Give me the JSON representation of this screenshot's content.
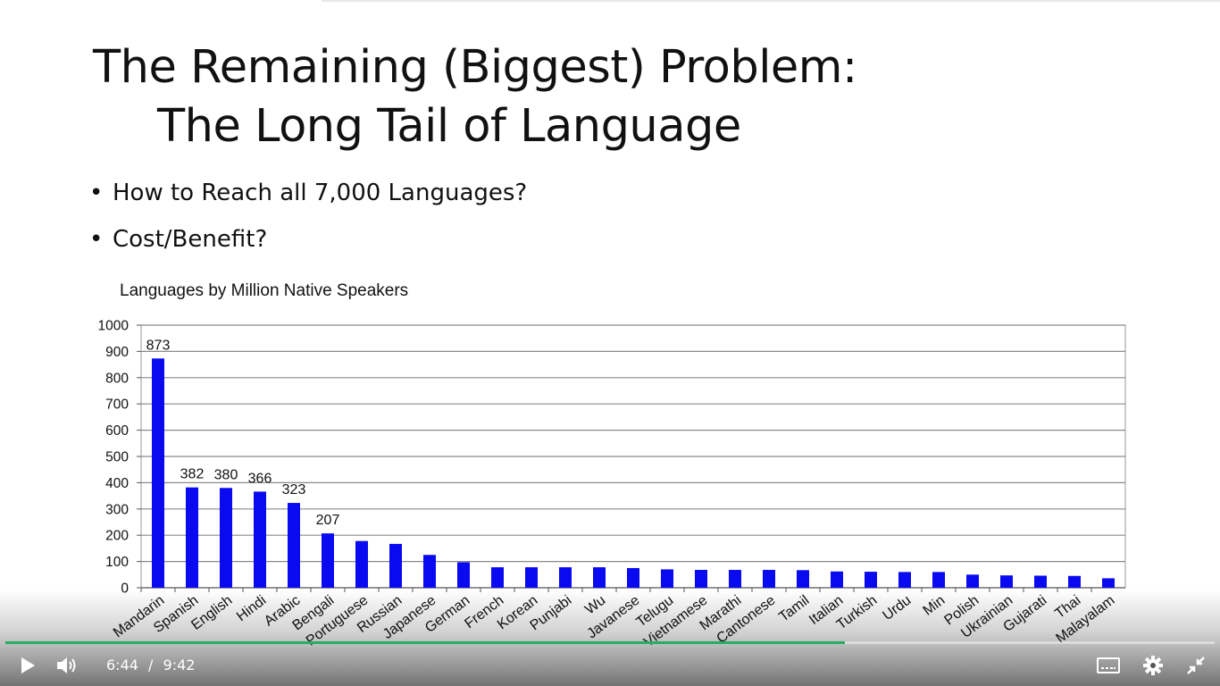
{
  "slide": {
    "title_line1": "The Remaining (Biggest) Problem:",
    "title_line2": "The Long Tail of Language",
    "bullets": [
      "How to Reach all 7,000 Languages?",
      "Cost/Benefit?"
    ],
    "bullet_symbol": "•"
  },
  "chart_data": {
    "type": "bar",
    "title": "Languages by Million Native Speakers",
    "xlabel": "",
    "ylabel": "",
    "ylim": [
      0,
      1000
    ],
    "yticks": [
      0,
      100,
      200,
      300,
      400,
      500,
      600,
      700,
      800,
      900,
      1000
    ],
    "grid": true,
    "bar_color": "#0a0af0",
    "categories": [
      "Mandarin",
      "Spanish",
      "English",
      "Hindi",
      "Arabic",
      "Bengali",
      "Portuguese",
      "Russian",
      "Japanese",
      "German",
      "French",
      "Korean",
      "Punjabi",
      "Wu",
      "Javanese",
      "Telugu",
      "Vietnamese",
      "Marathi",
      "Cantonese",
      "Tamil",
      "Italian",
      "Turkish",
      "Urdu",
      "Min",
      "Polish",
      "Ukrainian",
      "Gujarati",
      "Thai",
      "Malayalam"
    ],
    "values": [
      873,
      382,
      380,
      366,
      323,
      207,
      178,
      167,
      125,
      97,
      78,
      78,
      78,
      78,
      75,
      70,
      68,
      68,
      68,
      67,
      62,
      61,
      60,
      60,
      50,
      47,
      46,
      45,
      36
    ],
    "data_labels": [
      {
        "index": 0,
        "text": "873"
      },
      {
        "index": 1,
        "text": "382"
      },
      {
        "index": 2,
        "text": "380"
      },
      {
        "index": 3,
        "text": "366"
      },
      {
        "index": 4,
        "text": "323"
      },
      {
        "index": 5,
        "text": "207"
      }
    ]
  },
  "player": {
    "current_time": "6:44",
    "separator": "/",
    "duration": "9:42",
    "progress_fraction": 0.694,
    "progress_color": "#27ae60",
    "icons": [
      "play-icon",
      "volume-icon",
      "captions-icon",
      "gear-icon",
      "exit-fullscreen-icon"
    ]
  }
}
